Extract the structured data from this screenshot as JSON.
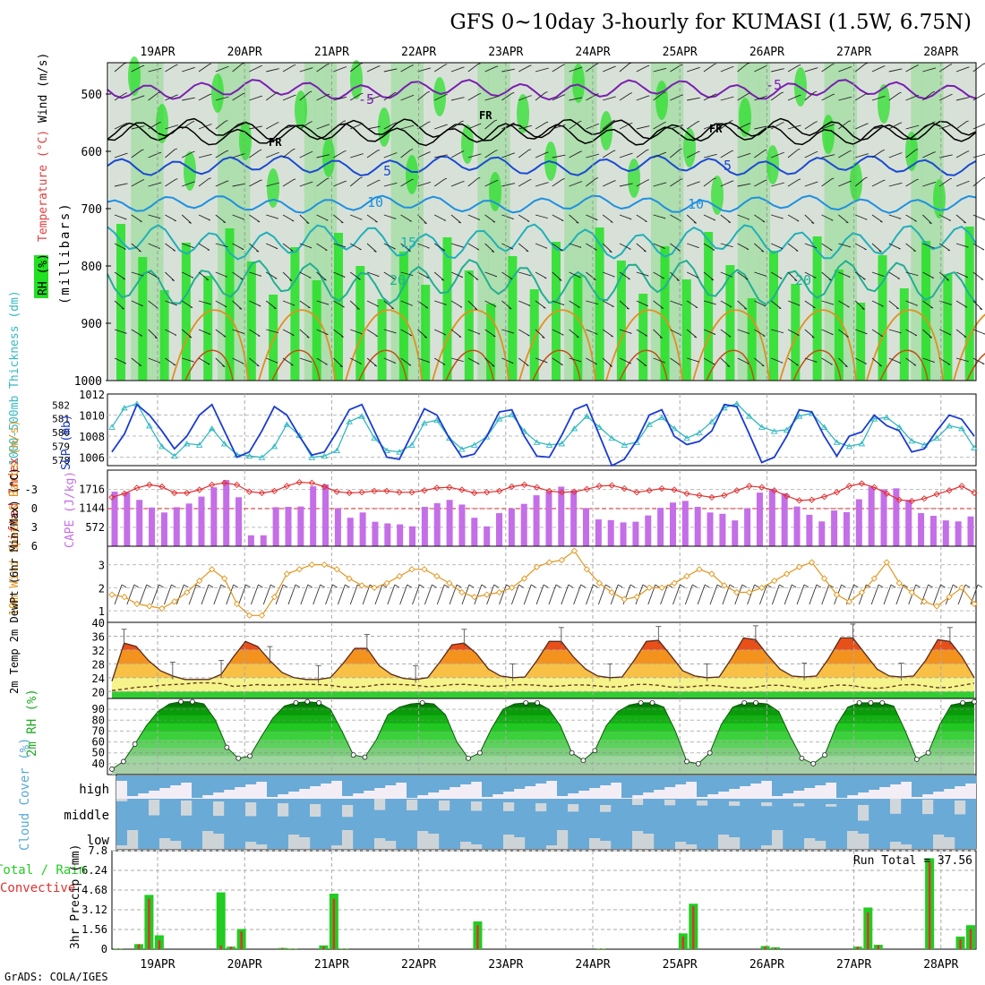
{
  "header": {
    "title": "GFS 0~10day 3-hourly for KUMASI (1.5W, 6.75N)",
    "footer": "GrADS: COLA/IGES"
  },
  "date_labels": [
    "19APR",
    "20APR",
    "21APR",
    "22APR",
    "23APR",
    "24APR",
    "25APR",
    "26APR",
    "27APR",
    "28APR"
  ],
  "panels": {
    "upper": {
      "ylabel_units": "(millibars)",
      "legend": [
        "RH (%)",
        "Temperature (°C)",
        "Wind (m/s)"
      ],
      "ticks": [
        "500",
        "600",
        "700",
        "800",
        "900",
        "1000"
      ],
      "contour_labels": [
        "-5",
        "-5",
        "FR",
        "FR",
        "FR",
        "5",
        "5",
        "10",
        "10",
        "15",
        "20",
        "20"
      ]
    },
    "slp": {
      "left_label": "1000-500mb Thickness (dm)",
      "right_label": "SLP (mb)",
      "left_ticks": [
        "582",
        "581",
        "580",
        "579",
        "578"
      ],
      "right_ticks": [
        "1012",
        "1010",
        "1008",
        "1006"
      ]
    },
    "cape": {
      "left_label": "Lifted Index",
      "right_label": "CAPE (J/kg)",
      "left_ticks": [
        "-3",
        "0",
        "3",
        "6"
      ],
      "right_ticks": [
        "1716",
        "1144",
        "572"
      ]
    },
    "wind": {
      "label": "10m Wind Speed & Barbs (m/s)",
      "ticks": [
        "3",
        "2",
        "1"
      ]
    },
    "temp": {
      "label": "2m Temp 2m DewPt (6hr Min/Max) (°C)",
      "ticks": [
        "40",
        "36",
        "32",
        "28",
        "24",
        "20"
      ]
    },
    "rh": {
      "label": "2m RH (%)",
      "ticks": [
        "90",
        "80",
        "70",
        "60",
        "50",
        "40"
      ]
    },
    "cloud": {
      "label": "Cloud Cover (%)",
      "levels": [
        "high",
        "middle",
        "low"
      ]
    },
    "precip": {
      "label_left": "Total / Rain",
      "label_conv": "Convective",
      "units": "3hr Precip (mm)",
      "ticks": [
        "7.8",
        "6.24",
        "4.68",
        "3.12",
        "1.56",
        "0"
      ],
      "run_total": "Run Total = 37.56"
    }
  },
  "colors": {
    "rh_bright": "#22e022",
    "rh_mid": "#7ccc7c",
    "rh_light": "#c6d2c6",
    "slp": "#1a3cd0",
    "thickness": "#33b8c0",
    "cape": "#c46ee8",
    "lifted_index": "#e03030",
    "wind_speed": "#e0961e",
    "cloud": "#6aaad6",
    "precip_total": "#22cc22",
    "precip_conv": "#e03030"
  },
  "chart_data": [
    {
      "type": "line",
      "title": "SLP (mb) and 1000-500mb Thickness (dm)",
      "series": [
        {
          "name": "SLP (mb)",
          "values": [
            1006.5,
            1008.2,
            1011.0,
            1010.0,
            1008.5,
            1006.8,
            1008.0,
            1010.0,
            1011.0,
            1008.5,
            1006.0,
            1006.5,
            1008.5,
            1010.8,
            1010.0,
            1008.0,
            1006.2,
            1006.5,
            1008.4,
            1010.5,
            1011.0,
            1008.5,
            1006.0,
            1005.8,
            1008.2,
            1010.6,
            1010.0,
            1007.8,
            1006.0,
            1006.3,
            1008.0,
            1010.3,
            1010.5,
            1008.0,
            1006.1,
            1006.0,
            1008.1,
            1010.5,
            1011.0,
            1008.1,
            1005.2,
            1005.8,
            1007.6,
            1010.0,
            1010.5,
            1008.0,
            1007.2,
            1007.5,
            1008.5,
            1011.0,
            1010.8,
            1008.2,
            1005.5,
            1006.0,
            1008.0,
            1010.5,
            1010.3,
            1008.0,
            1006.1,
            1008.0,
            1008.4,
            1010.0,
            1009.0,
            1008.5,
            1006.5,
            1006.8,
            1008.5,
            1010.0,
            1009.6,
            1008.0
          ]
        },
        {
          "name": "1000-500mb Thickness (dm)",
          "values": [
            580.4,
            581.8,
            582.1,
            580.5,
            579.0,
            578.3,
            579.2,
            579.1,
            580.3,
            579.2,
            578.4,
            578.3,
            578.2,
            579.0,
            580.6,
            579.8,
            578.2,
            578.3,
            578.7,
            580.8,
            581.2,
            579.6,
            578.7,
            578.6,
            579.1,
            580.7,
            580.9,
            579.6,
            578.8,
            579.1,
            579.7,
            581.0,
            581.3,
            580.1,
            579.3,
            579.1,
            579.2,
            580.3,
            581.2,
            580.4,
            579.6,
            579.1,
            579.3,
            580.6,
            581.1,
            580.3,
            579.6,
            580.0,
            580.8,
            581.8,
            582.1,
            581.2,
            580.4,
            580.1,
            580.2,
            581.2,
            581.4,
            580.4,
            579.3,
            579.0,
            579.2,
            581.0,
            581.1,
            580.4,
            579.4,
            579.1,
            579.6,
            580.5,
            580.3,
            578.9
          ]
        }
      ]
    },
    {
      "type": "bar",
      "title": "CAPE (J/kg) and Lifted Index",
      "series": [
        {
          "name": "CAPE (J/kg)",
          "values": [
            1650,
            1630,
            1400,
            1170,
            1020,
            1180,
            1290,
            1500,
            1780,
            2000,
            1480,
            330,
            330,
            1180,
            1190,
            1200,
            1810,
            1870,
            1140,
            860,
            1020,
            740,
            690,
            660,
            600,
            1190,
            1300,
            1400,
            1260,
            860,
            600,
            1000,
            1140,
            1280,
            1540,
            1650,
            1800,
            1690,
            1150,
            810,
            790,
            720,
            740,
            930,
            1160,
            1320,
            1370,
            1190,
            1020,
            980,
            780,
            1150,
            1620,
            1720,
            1600,
            1200,
            950,
            750,
            1080,
            1030,
            1420,
            1800,
            1720,
            1750,
            1400,
            1000,
            920,
            780,
            750,
            900
          ]
        },
        {
          "name": "Lifted Index",
          "values": [
            -1.8,
            -2.4,
            -3.3,
            -3.8,
            -3.5,
            -2.5,
            -2.5,
            -3.0,
            -3.8,
            -4.1,
            -3.8,
            -2.7,
            -2.5,
            -2.8,
            -3.6,
            -4.2,
            -4.1,
            -3.5,
            -2.7,
            -2.5,
            -2.6,
            -2.8,
            -2.8,
            -2.6,
            -2.6,
            -2.9,
            -3.3,
            -3.4,
            -3.0,
            -2.5,
            -2.6,
            -2.8,
            -3.5,
            -3.8,
            -3.4,
            -2.8,
            -2.6,
            -2.7,
            -3.1,
            -3.6,
            -3.7,
            -3.2,
            -2.6,
            -2.9,
            -3.2,
            -3.0,
            -2.4,
            -2.1,
            -1.8,
            -2.1,
            -2.9,
            -3.6,
            -3.4,
            -2.9,
            -2.0,
            -1.3,
            -1.4,
            -1.9,
            -2.6,
            -3.6,
            -4.0,
            -3.4,
            -2.4,
            -1.4,
            -1.2,
            -1.6,
            -2.3,
            -2.9,
            -3.6,
            -2.5
          ]
        }
      ]
    },
    {
      "type": "line",
      "title": "10m Wind Speed (m/s)",
      "series": [
        {
          "name": "Speed",
          "values": [
            1.7,
            1.6,
            1.3,
            1.2,
            1.1,
            1.4,
            1.8,
            2.3,
            2.8,
            2.4,
            1.3,
            0.8,
            0.8,
            1.6,
            2.6,
            2.8,
            3.0,
            3.0,
            2.8,
            2.4,
            2.1,
            2.0,
            2.2,
            2.5,
            2.8,
            2.8,
            2.5,
            2.2,
            1.8,
            1.6,
            1.7,
            1.8,
            2.0,
            2.4,
            2.9,
            3.1,
            3.2,
            3.6,
            2.8,
            2.2,
            1.8,
            1.5,
            1.6,
            2.0,
            2.0,
            2.2,
            2.5,
            2.8,
            2.6,
            2.1,
            1.8,
            1.8,
            2.0,
            2.3,
            2.6,
            2.9,
            3.1,
            2.4,
            1.7,
            1.4,
            1.8,
            2.4,
            3.1,
            2.2,
            1.8,
            1.4,
            1.2,
            1.6,
            2.0,
            1.3
          ]
        }
      ]
    },
    {
      "type": "area",
      "title": "2m Temp and 2m DewPt (°C)",
      "series": [
        {
          "name": "2m Temp",
          "values": [
            23.0,
            34.0,
            33.0,
            29.0,
            26.0,
            24.5,
            23.5,
            23.5,
            23.5,
            25.0,
            30.0,
            34.5,
            33.0,
            29.0,
            25.5,
            24.0,
            23.5,
            23.5,
            24.0,
            28.0,
            32.5,
            32.5,
            27.5,
            25.0,
            23.8,
            23.5,
            24.0,
            28.5,
            33.5,
            34.0,
            31.0,
            26.5,
            24.5,
            24.0,
            24.2,
            29.0,
            34.5,
            34.5,
            30.0,
            26.5,
            24.5,
            24.0,
            24.2,
            29.0,
            34.5,
            34.8,
            30.5,
            26.0,
            24.5,
            24.0,
            24.2,
            29.5,
            35.5,
            35.0,
            30.5,
            26.5,
            24.5,
            24.2,
            24.5,
            29.5,
            35.5,
            35.5,
            31.0,
            26.5,
            24.5,
            24.2,
            24.5,
            29.0,
            35.0,
            34.5,
            30.0,
            24.0
          ]
        },
        {
          "name": "2m DewPt",
          "values": [
            20.3,
            20.7,
            21.2,
            21.4,
            21.8,
            22.0,
            22.2,
            22.5,
            22.5,
            22.3,
            21.5,
            21.7,
            22.0,
            21.8,
            21.9,
            22.0,
            22.1,
            22.0,
            21.8,
            21.3,
            21.2,
            21.5,
            22.0,
            22.1,
            22.0,
            21.8,
            21.4,
            21.6,
            22.0,
            22.1,
            21.8,
            21.5,
            21.6,
            21.9,
            22.0,
            21.8,
            21.5,
            21.6,
            21.9,
            21.9,
            21.6,
            21.3,
            21.5,
            22.0,
            22.1,
            21.8,
            21.3,
            21.2,
            21.5,
            21.8,
            21.6,
            21.2,
            21.0,
            21.3,
            21.8,
            21.8,
            21.4,
            20.9,
            21.0,
            21.6,
            21.9,
            21.7,
            21.1,
            20.9,
            21.3,
            21.9,
            22.0,
            21.6,
            21.1,
            21.2,
            21.8,
            22.4
          ]
        }
      ]
    },
    {
      "type": "area",
      "title": "2m RH (%)",
      "series": [
        {
          "name": "2m RH",
          "values": [
            35,
            42,
            58,
            75,
            88,
            95,
            97,
            97,
            95,
            80,
            55,
            45,
            47,
            65,
            82,
            93,
            96,
            97,
            96,
            90,
            70,
            48,
            46,
            62,
            85,
            92,
            95,
            96,
            95,
            85,
            60,
            45,
            50,
            72,
            90,
            95,
            96,
            96,
            90,
            75,
            50,
            43,
            52,
            75,
            88,
            94,
            96,
            96,
            92,
            70,
            42,
            40,
            50,
            76,
            92,
            96,
            96,
            95,
            88,
            65,
            45,
            40,
            48,
            75,
            92,
            96,
            96,
            96,
            93,
            70,
            44,
            50,
            76,
            94,
            96,
            97
          ]
        }
      ]
    },
    {
      "type": "bar",
      "title": "3hr Precip (mm)",
      "series": [
        {
          "name": "Total / Rain",
          "values": [
            0.05,
            0.0,
            0.4,
            4.3,
            1.1,
            0.0,
            0.0,
            0.0,
            0.0,
            0.0,
            4.5,
            0.2,
            1.6,
            0.0,
            0.0,
            0.0,
            0.1,
            0.05,
            0.0,
            0.0,
            0.3,
            4.4,
            0.05,
            0.0,
            0.0,
            0.0,
            0.0,
            0.0,
            0.0,
            0.0,
            0.0,
            0.0,
            0.0,
            0.0,
            0.0,
            2.2,
            0.0,
            0.0,
            0.0,
            0.0,
            0.0,
            0.0,
            0.0,
            0.0,
            0.0,
            0.0,
            0.0,
            0.05,
            0.0,
            0.0,
            0.0,
            0.0,
            0.0,
            0.0,
            0.0,
            1.25,
            3.6,
            0.0,
            0.0,
            0.0,
            0.0,
            0.0,
            0.0,
            0.25,
            0.15,
            0.0,
            0.0,
            0.0,
            0.0,
            0.0,
            0.0,
            0.0,
            0.2,
            3.3,
            0.35,
            0.0,
            0.0,
            0.0,
            0.0,
            7.2,
            0.0,
            0.0,
            1.0,
            1.9
          ]
        },
        {
          "name": "Convective",
          "values": [
            0.05,
            0.0,
            0.4,
            4.0,
            0.7,
            0.0,
            0.0,
            0.0,
            0.0,
            0.0,
            0.3,
            0.2,
            1.4,
            0.0,
            0.0,
            0.0,
            0.1,
            0.05,
            0.0,
            0.0,
            0.2,
            4.0,
            0.05,
            0.0,
            0.0,
            0.0,
            0.0,
            0.0,
            0.0,
            0.0,
            0.0,
            0.0,
            0.0,
            0.0,
            0.0,
            1.9,
            0.0,
            0.0,
            0.0,
            0.0,
            0.0,
            0.0,
            0.0,
            0.0,
            0.0,
            0.0,
            0.0,
            0.05,
            0.0,
            0.0,
            0.0,
            0.0,
            0.0,
            0.0,
            0.0,
            1.0,
            3.4,
            0.0,
            0.0,
            0.0,
            0.0,
            0.0,
            0.0,
            0.2,
            0.1,
            0.0,
            0.0,
            0.0,
            0.0,
            0.0,
            0.0,
            0.0,
            0.2,
            2.9,
            0.3,
            0.0,
            0.0,
            0.0,
            0.0,
            6.9,
            0.0,
            0.0,
            0.8,
            1.6
          ]
        }
      ]
    }
  ]
}
